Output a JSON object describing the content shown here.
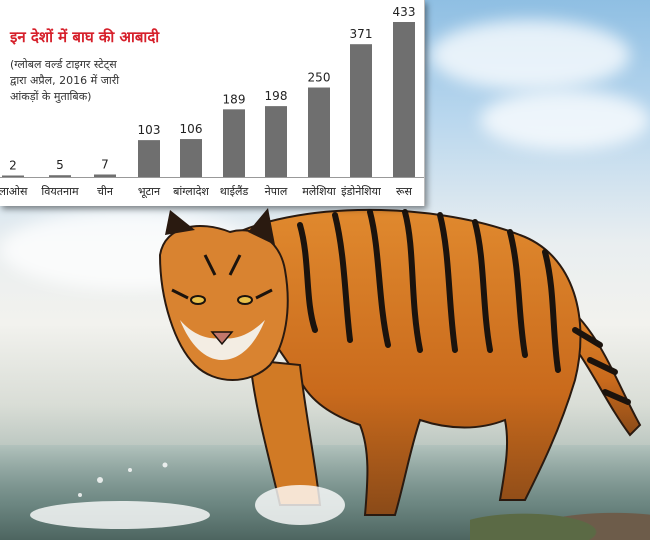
{
  "chart_data": {
    "type": "bar",
    "title": "इन देशों में बाघ की आबादी",
    "subtitle_lines": [
      "(ग्लोबल वर्ल्ड टाइगर स्टेट्स",
      "द्वारा अप्रैल, 2016 में जारी",
      "आंकड़ों के मुताबिक)"
    ],
    "categories": [
      "लाओस",
      "वियतनाम",
      "चीन",
      "भूटान",
      "बांग्लादेश",
      "थाईलैंड",
      "नेपाल",
      "मलेशिया",
      "इंडोनेशिया",
      "रूस"
    ],
    "values": [
      2,
      5,
      7,
      103,
      106,
      189,
      198,
      250,
      371,
      433
    ],
    "ylim": [
      0,
      433
    ],
    "grid": false,
    "legend": "none",
    "bar_color": "#6f6f6f",
    "title_color": "#d6202b"
  }
}
